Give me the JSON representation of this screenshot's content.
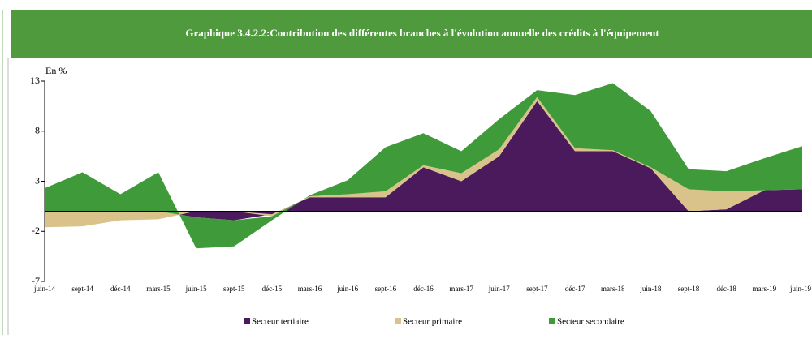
{
  "chart_data": {
    "type": "stacked_area",
    "title": "Graphique 3.4.2.2:Contribution des différentes branches à l'évolution  annuelle des crédits à l'équipement",
    "y_label": "En %",
    "categories": [
      "juin-14",
      "sept-14",
      "déc-14",
      "mars-15",
      "juin-15",
      "sept-15",
      "déc-15",
      "mars-16",
      "juin-16",
      "sept-16",
      "déc-16",
      "mars-17",
      "juin-17",
      "sept-17",
      "déc-17",
      "mars-18",
      "juin-18",
      "sept-18",
      "déc-18",
      "mars-19",
      "juin-19"
    ],
    "series": [
      {
        "name": "Secteur tertiaire",
        "color": "#4a1a5c",
        "values": [
          0,
          0,
          0,
          0,
          -0.6,
          -0.9,
          -0.3,
          1.4,
          1.4,
          1.4,
          4.4,
          3.0,
          5.5,
          11.0,
          6.0,
          6.0,
          4.3,
          0,
          0.2,
          2.1,
          2.2
        ]
      },
      {
        "name": "Secteur primaire",
        "color": "#d9c38a",
        "values": [
          -1.6,
          -1.5,
          -0.9,
          -0.8,
          0,
          0,
          -0.2,
          0.1,
          0.3,
          0.6,
          0.2,
          0.8,
          0.7,
          0.4,
          0.3,
          0.1,
          0.1,
          2.2,
          1.8,
          0,
          0
        ]
      },
      {
        "name": "Secteur secondaire",
        "color": "#3f9a3a",
        "values": [
          2.3,
          3.9,
          1.7,
          3.9,
          -3.1,
          -2.6,
          -0.4,
          0.1,
          1.4,
          4.4,
          3.2,
          2.2,
          3.0,
          0.7,
          5.3,
          6.7,
          5.6,
          2.0,
          2.0,
          3.2,
          4.3
        ]
      }
    ],
    "ylim": [
      -7,
      13
    ],
    "yticks": [
      -7,
      -2,
      3,
      8,
      13
    ],
    "legend": "bottom"
  }
}
